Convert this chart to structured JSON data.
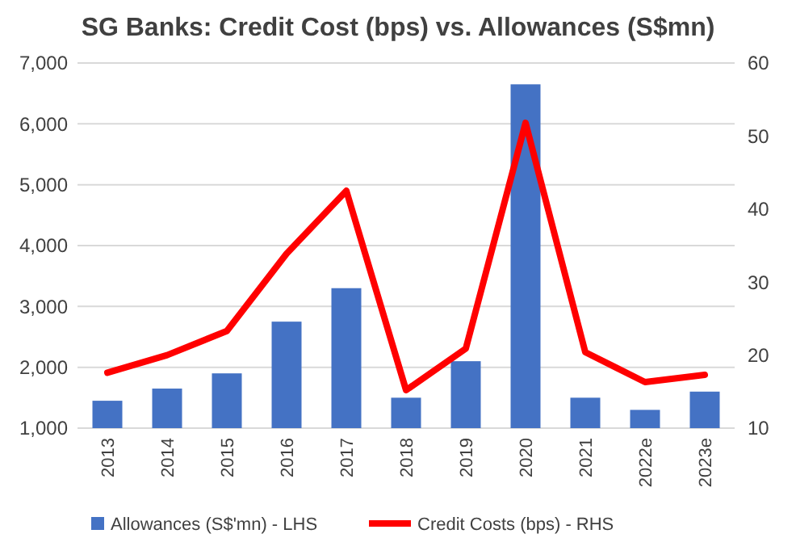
{
  "chart_data": {
    "type": "bar",
    "title": "SG Banks: Credit Cost (bps) vs. Allowances (S$mn)",
    "categories": [
      "2013",
      "2014",
      "2015",
      "2016",
      "2017",
      "2018",
      "2019",
      "2020",
      "2021",
      "2022e",
      "2023e"
    ],
    "series": [
      {
        "name": "Allowances (S$'mn) - LHS",
        "color": "#4472c4",
        "values": [
          1450,
          1650,
          1900,
          2750,
          3300,
          1500,
          2100,
          6650,
          1500,
          1300,
          1600
        ]
      },
      {
        "name": "Credit Costs (bps) - RHS",
        "color": "#ff0000",
        "type": "line",
        "axis": "y2",
        "values": [
          17.6,
          20,
          23.3,
          33.9,
          42.5,
          15.2,
          20.9,
          51.8,
          20.4,
          16.3,
          17.3
        ]
      }
    ],
    "ylim": [
      1000,
      7000
    ],
    "yticks": [
      {
        "value": 1000,
        "label": "1,000"
      },
      {
        "value": 2000,
        "label": "2,000"
      },
      {
        "value": 3000,
        "label": "3,000"
      },
      {
        "value": 4000,
        "label": "4,000"
      },
      {
        "value": 5000,
        "label": "5,000"
      },
      {
        "value": 6000,
        "label": "6,000"
      },
      {
        "value": 7000,
        "label": "7,000"
      }
    ],
    "y2lim": [
      10,
      60
    ],
    "y2ticks": [
      10,
      20,
      30,
      40,
      50,
      60
    ],
    "grid": "y",
    "legend": "bottom",
    "marker": "none",
    "line_style": "solid"
  }
}
